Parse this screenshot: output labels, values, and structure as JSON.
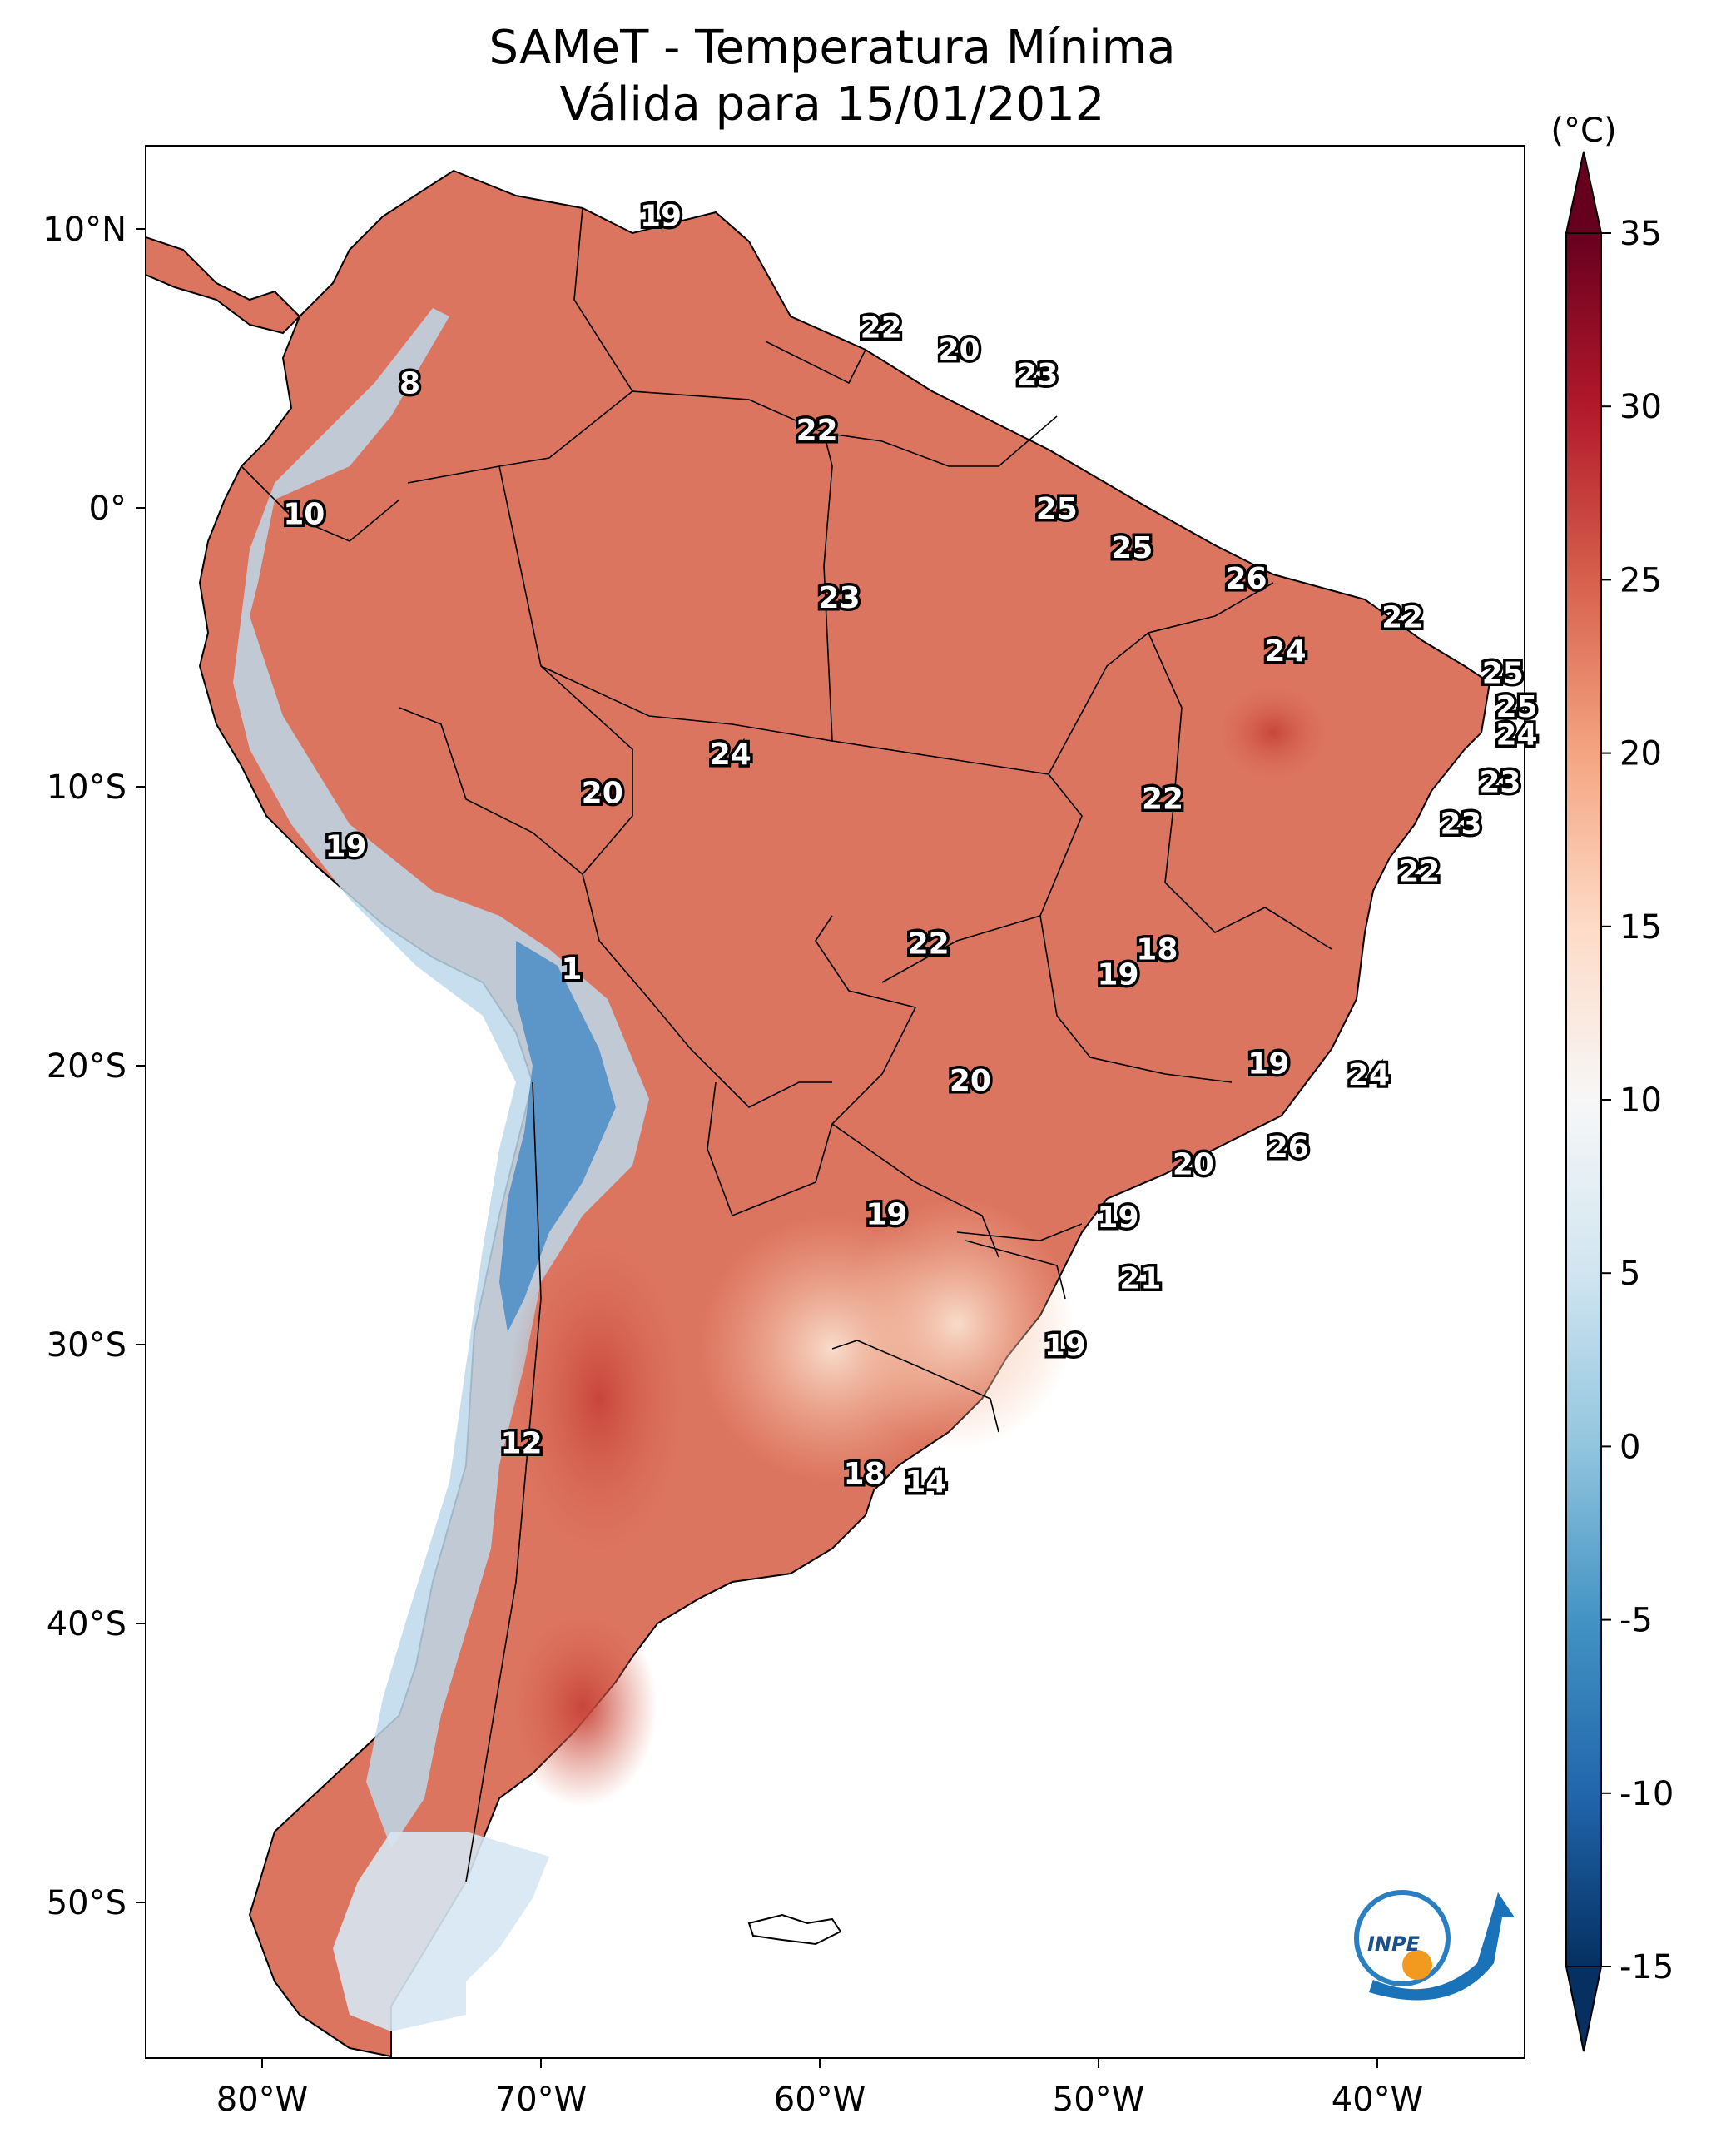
{
  "title": {
    "line1": "SAMeT - Temperatura Mínima",
    "line2": "Válida para 15/01/2012"
  },
  "axes": {
    "lon_ticks": [
      "80°W",
      "70°W",
      "60°W",
      "50°W",
      "40°W"
    ],
    "lat_ticks": [
      "10°N",
      "0°",
      "10°S",
      "20°S",
      "30°S",
      "40°S",
      "50°S"
    ]
  },
  "colorbar": {
    "unit": "(°C)",
    "ticks": [
      "35",
      "30",
      "25",
      "20",
      "15",
      "10",
      "5",
      "0",
      "-5",
      "-10",
      "-15"
    ],
    "range": [
      -15,
      35
    ],
    "colormap": "RdBu_r"
  },
  "logo": {
    "text": "INPE"
  },
  "values": [
    {
      "text": "19",
      "lon": -65.7,
      "lat": 10.5
    },
    {
      "text": "22",
      "lon": -57.8,
      "lat": 6.5
    },
    {
      "text": "20",
      "lon": -55.0,
      "lat": 5.7
    },
    {
      "text": "23",
      "lon": -52.2,
      "lat": 4.8
    },
    {
      "text": "8",
      "lon": -74.7,
      "lat": 4.5
    },
    {
      "text": "22",
      "lon": -60.1,
      "lat": 2.8
    },
    {
      "text": "10",
      "lon": -78.5,
      "lat": -0.2
    },
    {
      "text": "25",
      "lon": -51.5,
      "lat": 0.0
    },
    {
      "text": "25",
      "lon": -48.8,
      "lat": -1.4
    },
    {
      "text": "26",
      "lon": -44.7,
      "lat": -2.5
    },
    {
      "text": "22",
      "lon": -39.1,
      "lat": -3.9
    },
    {
      "text": "23",
      "lon": -59.3,
      "lat": -3.2
    },
    {
      "text": "24",
      "lon": -43.3,
      "lat": -5.1
    },
    {
      "text": "25",
      "lon": -35.5,
      "lat": -5.9
    },
    {
      "text": "25",
      "lon": -35.0,
      "lat": -7.1
    },
    {
      "text": "24",
      "lon": -35.0,
      "lat": -8.1
    },
    {
      "text": "24",
      "lon": -63.2,
      "lat": -8.8
    },
    {
      "text": "23",
      "lon": -35.6,
      "lat": -9.8
    },
    {
      "text": "20",
      "lon": -67.8,
      "lat": -10.2
    },
    {
      "text": "22",
      "lon": -47.7,
      "lat": -10.4
    },
    {
      "text": "23",
      "lon": -37.0,
      "lat": -11.3
    },
    {
      "text": "19",
      "lon": -77.0,
      "lat": -12.1
    },
    {
      "text": "22",
      "lon": -38.5,
      "lat": -13.0
    },
    {
      "text": "22",
      "lon": -56.1,
      "lat": -15.6
    },
    {
      "text": "18",
      "lon": -47.9,
      "lat": -15.8
    },
    {
      "text": "19",
      "lon": -49.3,
      "lat": -16.7
    },
    {
      "text": "1",
      "lon": -68.9,
      "lat": -16.5
    },
    {
      "text": "19",
      "lon": -43.9,
      "lat": -19.9
    },
    {
      "text": "20",
      "lon": -54.6,
      "lat": -20.5
    },
    {
      "text": "24",
      "lon": -40.3,
      "lat": -20.3
    },
    {
      "text": "26",
      "lon": -43.2,
      "lat": -22.9
    },
    {
      "text": "20",
      "lon": -46.6,
      "lat": -23.5
    },
    {
      "text": "19",
      "lon": -57.6,
      "lat": -25.3
    },
    {
      "text": "19",
      "lon": -49.3,
      "lat": -25.4
    },
    {
      "text": "21",
      "lon": -48.5,
      "lat": -27.6
    },
    {
      "text": "19",
      "lon": -51.2,
      "lat": -30.0
    },
    {
      "text": "12",
      "lon": -70.7,
      "lat": -33.5
    },
    {
      "text": "18",
      "lon": -58.4,
      "lat": -34.6
    },
    {
      "text": "14",
      "lon": -56.2,
      "lat": -34.9
    }
  ]
}
